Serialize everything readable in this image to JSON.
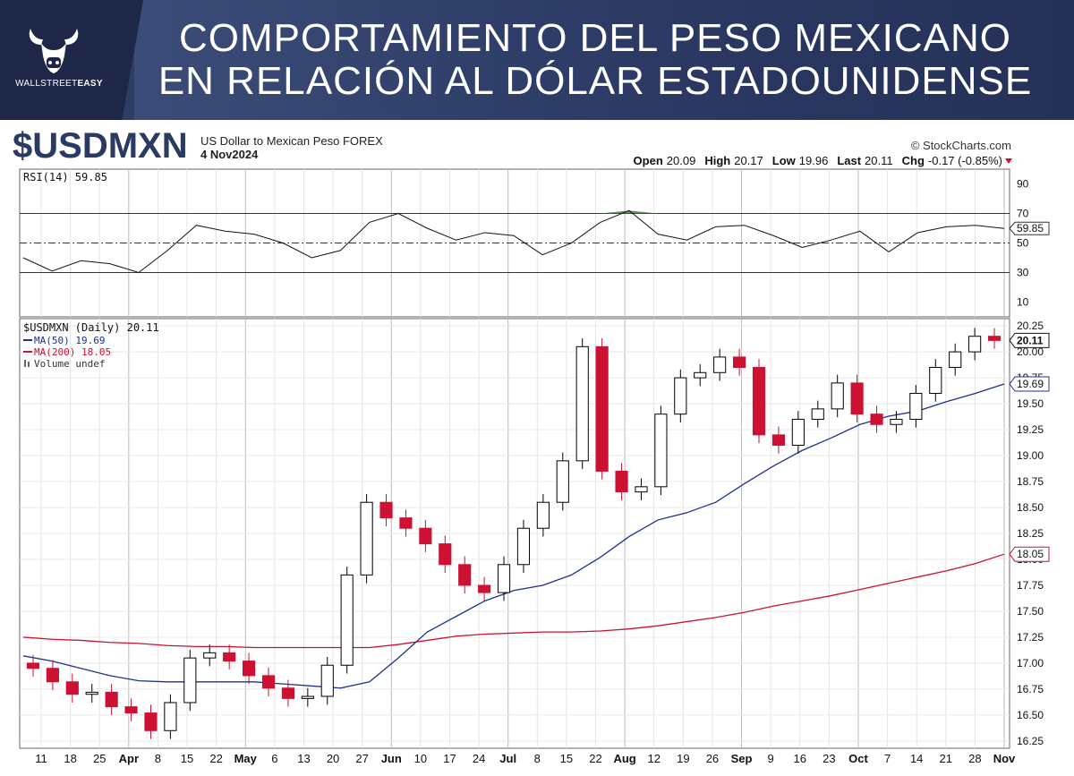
{
  "header": {
    "title_line1": "COMPORTAMIENTO DEL PESO MEXICANO",
    "title_line2": "EN RELACIÓN AL DÓLAR ESTADOUNIDENSE",
    "logo_text_a": "WALLSTREET",
    "logo_text_b": "EASY"
  },
  "chart_header": {
    "symbol": "$USDMXN",
    "description": "US Dollar to Mexican Peso FOREX",
    "date": "4 Nov2024",
    "source": "© StockCharts.com",
    "open_label": "Open",
    "open": "20.09",
    "high_label": "High",
    "high": "20.17",
    "low_label": "Low",
    "low": "19.96",
    "last_label": "Last",
    "last": "20.11",
    "chg_label": "Chg",
    "chg": "-0.17 (-0.85%)"
  },
  "rsi_legend": "RSI(14) 59.85",
  "price_legend": {
    "symbol": "$USDMXN (Daily) 20.11",
    "ma50": "MA(50) 19.69",
    "ma200": "MA(200) 18.05",
    "volume": "Volume undef"
  },
  "badges": {
    "rsi": "59.85",
    "last": "20.11",
    "ma50": "19.69",
    "ma200": "18.05"
  },
  "colors": {
    "up": "#000000",
    "down": "#cc1133",
    "ma50": "#1f2f8f",
    "ma200": "#cc1133",
    "banner": "#2e3d63",
    "rsi_fill": "#4a7a45"
  },
  "chart_data": [
    {
      "type": "line",
      "title": "RSI(14) 59.85",
      "ylim": [
        0,
        100
      ],
      "y_ticks": [
        90,
        70,
        50,
        30,
        10
      ],
      "y_tick_labels": [
        "90",
        "70",
        "50",
        "30",
        "10"
      ],
      "reference_lines": [
        70,
        50,
        30
      ],
      "x": [
        "Mar 11",
        "Mar 18",
        "Mar 25",
        "Apr 1",
        "Apr 8",
        "Apr 15",
        "Apr 22",
        "Apr 29",
        "May 6",
        "May 13",
        "May 20",
        "May 27",
        "Jun 3",
        "Jun 10",
        "Jun 17",
        "Jun 24",
        "Jul 1",
        "Jul 8",
        "Jul 15",
        "Jul 22",
        "Jul 29",
        "Aug 5",
        "Aug 12",
        "Aug 19",
        "Aug 26",
        "Sep 2",
        "Sep 9",
        "Sep 16",
        "Sep 23",
        "Sep 30",
        "Oct 7",
        "Oct 14",
        "Oct 21",
        "Oct 28",
        "Nov 4"
      ],
      "series": [
        {
          "values": [
            40,
            31,
            38,
            36,
            30,
            45,
            62,
            58,
            56,
            50,
            40,
            45,
            64,
            70,
            60,
            52,
            57,
            55,
            42,
            50,
            64,
            72,
            56,
            52,
            61,
            62,
            55,
            47,
            52,
            58,
            44,
            57,
            61,
            62,
            59.85
          ]
        }
      ]
    },
    {
      "type": "candlestick",
      "title": "$USDMXN (Daily) 20.11",
      "ylim": [
        16.18,
        20.32
      ],
      "y_ticks": [
        20.25,
        20.0,
        19.75,
        19.5,
        19.25,
        19.0,
        18.75,
        18.5,
        18.25,
        18.0,
        17.75,
        17.5,
        17.25,
        17.0,
        16.75,
        16.5,
        16.25
      ],
      "y_tick_labels": [
        "20.25",
        "20.00",
        "19.75",
        "19.50",
        "19.25",
        "19.00",
        "18.75",
        "18.50",
        "18.25",
        "18.00",
        "17.75",
        "17.50",
        "17.25",
        "17.00",
        "16.75",
        "16.50",
        "16.25"
      ],
      "x_tick_labels": [
        "11",
        "18",
        "25",
        "Apr",
        "8",
        "15",
        "22",
        "May",
        "6",
        "13",
        "20",
        "27",
        "Jun",
        "10",
        "17",
        "24",
        "Jul",
        "8",
        "15",
        "22",
        "Aug",
        "12",
        "19",
        "26",
        "Sep",
        "9",
        "16",
        "23",
        "Oct",
        "7",
        "14",
        "21",
        "28",
        "Nov"
      ],
      "x_tick_bold": [
        "Apr",
        "May",
        "Jun",
        "Jul",
        "Aug",
        "Sep",
        "Oct",
        "Nov"
      ],
      "series": [
        {
          "name": "$USDMXN",
          "close": [
            16.95,
            16.82,
            16.7,
            16.72,
            16.58,
            16.52,
            16.35,
            16.62,
            17.05,
            17.1,
            17.02,
            16.88,
            16.76,
            16.66,
            16.68,
            16.98,
            17.85,
            18.55,
            18.4,
            18.3,
            18.15,
            17.95,
            17.75,
            17.68,
            17.95,
            18.3,
            18.55,
            18.95,
            20.05,
            18.85,
            18.65,
            18.7,
            19.4,
            19.75,
            19.8,
            19.95,
            19.85,
            19.2,
            19.1,
            19.35,
            19.45,
            19.7,
            19.4,
            19.3,
            19.35,
            19.6,
            19.85,
            20.0,
            20.15,
            20.11
          ]
        },
        {
          "name": "MA(50) 19.69",
          "values": [
            17.07,
            17.02,
            16.95,
            16.88,
            16.83,
            16.82,
            16.82,
            16.82,
            16.82,
            16.8,
            16.78,
            16.76,
            16.82,
            17.05,
            17.3,
            17.45,
            17.6,
            17.7,
            17.75,
            17.85,
            18.02,
            18.22,
            18.38,
            18.45,
            18.55,
            18.73,
            18.9,
            19.05,
            19.17,
            19.3,
            19.38,
            19.43,
            19.52,
            19.6,
            19.69
          ]
        },
        {
          "name": "MA(200) 18.05",
          "values": [
            17.25,
            17.23,
            17.22,
            17.2,
            17.19,
            17.17,
            17.16,
            17.16,
            17.15,
            17.15,
            17.15,
            17.15,
            17.15,
            17.18,
            17.22,
            17.26,
            17.28,
            17.29,
            17.3,
            17.3,
            17.31,
            17.33,
            17.36,
            17.4,
            17.44,
            17.49,
            17.55,
            17.6,
            17.65,
            17.71,
            17.77,
            17.83,
            17.89,
            17.96,
            18.05
          ]
        }
      ]
    }
  ]
}
